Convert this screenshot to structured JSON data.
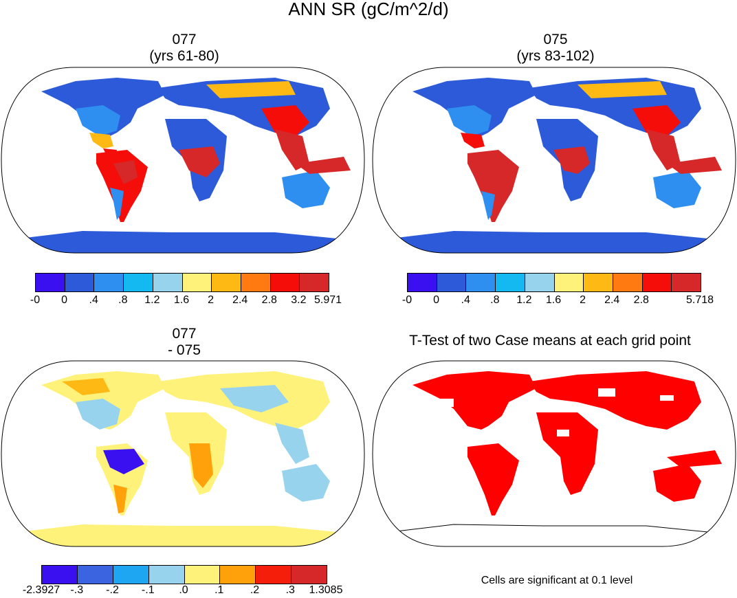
{
  "title": "ANN SR (gC/m^2/d)",
  "panels": [
    {
      "line1": "077",
      "line2": "(yrs 61-80)"
    },
    {
      "line1": "075",
      "line2": "(yrs 83-102)"
    },
    {
      "line1": "077",
      "line2": "- 075"
    },
    {
      "line1": "T-Test of two Case means at each grid point",
      "line2": ""
    }
  ],
  "significance_note": "Cells are significant at 0.1 level",
  "colorbars": [
    {
      "colors": [
        "#3a10f0",
        "#2c5ad8",
        "#2e8ff0",
        "#14b9f2",
        "#98d3ee",
        "#fff27a",
        "#ffb914",
        "#ff7a10",
        "#f50d0a",
        "#d62828"
      ],
      "labels": [
        "-0",
        "0",
        ".4",
        ".8",
        "1.2",
        "1.6",
        "2",
        "2.4",
        "2.8",
        "3.2",
        "5.971"
      ]
    },
    {
      "colors": [
        "#3a10f0",
        "#2c5ad8",
        "#2e8ff0",
        "#14b9f2",
        "#98d3ee",
        "#fff27a",
        "#ffb914",
        "#ff7a10",
        "#f50d0a",
        "#d62828"
      ],
      "labels": [
        "-0",
        "0",
        ".4",
        ".8",
        "1.2",
        "1.6",
        "2",
        "2.4",
        "2.8",
        "",
        "5.718"
      ]
    },
    {
      "colors": [
        "#3a10f0",
        "#3a64e0",
        "#1fa6f2",
        "#98d3ee",
        "#fff27a",
        "#ffa10a",
        "#f51e0a",
        "#d62828"
      ],
      "labels": [
        "-2.3927",
        "-.3",
        "-.2",
        "-.1",
        ".0",
        ".1",
        ".2",
        ".3",
        "1.3085"
      ]
    }
  ],
  "colors": {
    "ocean": "#ffffff",
    "significant": "#ff0000",
    "outline": "#000000"
  }
}
